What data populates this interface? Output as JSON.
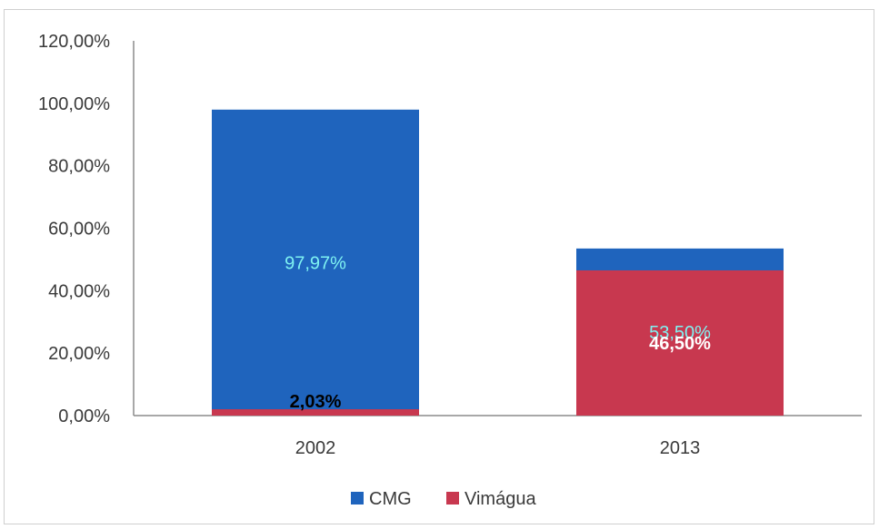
{
  "chart_data": {
    "type": "bar",
    "stacked": true,
    "categories": [
      "2002",
      "2013"
    ],
    "series": [
      {
        "name": "CMG",
        "values": [
          97.97,
          53.5
        ],
        "labels": [
          "97,97%",
          "53,50%"
        ],
        "color": "#1f64bd",
        "label_color": "#7ff3f2"
      },
      {
        "name": "Vimágua",
        "values": [
          2.03,
          46.5
        ],
        "labels": [
          "2,03%",
          "46,50%"
        ],
        "color": "#c8384f",
        "label_color": "#ffffff"
      }
    ],
    "ylim": [
      0,
      120
    ],
    "yticks": [
      {
        "value": 0,
        "label": "0,00%"
      },
      {
        "value": 20,
        "label": "20,00%"
      },
      {
        "value": 40,
        "label": "40,00%"
      },
      {
        "value": 60,
        "label": "60,00%"
      },
      {
        "value": 80,
        "label": "80,00%"
      },
      {
        "value": 100,
        "label": "100,00%"
      },
      {
        "value": 120,
        "label": "120,00%"
      }
    ],
    "grid": false,
    "legend_position": "bottom"
  }
}
